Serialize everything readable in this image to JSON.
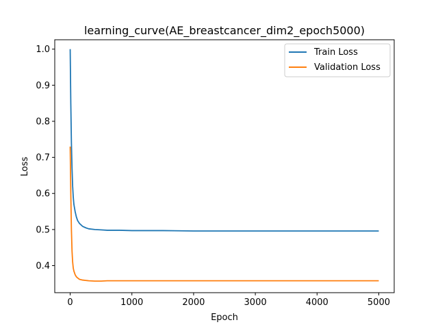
{
  "chart_data": {
    "type": "line",
    "title": "learning_curve(AE_breastcancer_dim2_epoch5000)",
    "xlabel": "Epoch",
    "ylabel": "Loss",
    "xlim": [
      -250,
      5250
    ],
    "ylim": [
      0.325,
      1.026
    ],
    "xticks": [
      0,
      1000,
      2000,
      3000,
      4000,
      5000
    ],
    "yticks": [
      0.4,
      0.5,
      0.6,
      0.7,
      0.8,
      0.9,
      1.0
    ],
    "grid": false,
    "legend_position": "top-right",
    "series": [
      {
        "name": "Train Loss",
        "color": "#1f77b4",
        "x": [
          0,
          10,
          20,
          30,
          40,
          50,
          60,
          80,
          100,
          120,
          150,
          200,
          250,
          300,
          400,
          500,
          600,
          800,
          1000,
          1500,
          2000,
          2500,
          3000,
          3500,
          4000,
          4500,
          5000
        ],
        "y": [
          1.0,
          0.85,
          0.74,
          0.67,
          0.62,
          0.59,
          0.57,
          0.55,
          0.535,
          0.525,
          0.517,
          0.509,
          0.505,
          0.502,
          0.5,
          0.499,
          0.498,
          0.498,
          0.497,
          0.497,
          0.496,
          0.496,
          0.496,
          0.496,
          0.496,
          0.496,
          0.496
        ]
      },
      {
        "name": "Validation Loss",
        "color": "#ff7f0e",
        "x": [
          0,
          10,
          20,
          30,
          40,
          50,
          60,
          80,
          100,
          120,
          150,
          200,
          250,
          300,
          400,
          500,
          600,
          800,
          1000,
          1500,
          2000,
          2500,
          3000,
          3500,
          4000,
          4500,
          5000
        ],
        "y": [
          0.73,
          0.6,
          0.5,
          0.44,
          0.41,
          0.393,
          0.385,
          0.375,
          0.369,
          0.366,
          0.362,
          0.36,
          0.359,
          0.358,
          0.357,
          0.357,
          0.358,
          0.358,
          0.358,
          0.358,
          0.358,
          0.358,
          0.358,
          0.358,
          0.358,
          0.358,
          0.358
        ]
      }
    ]
  }
}
